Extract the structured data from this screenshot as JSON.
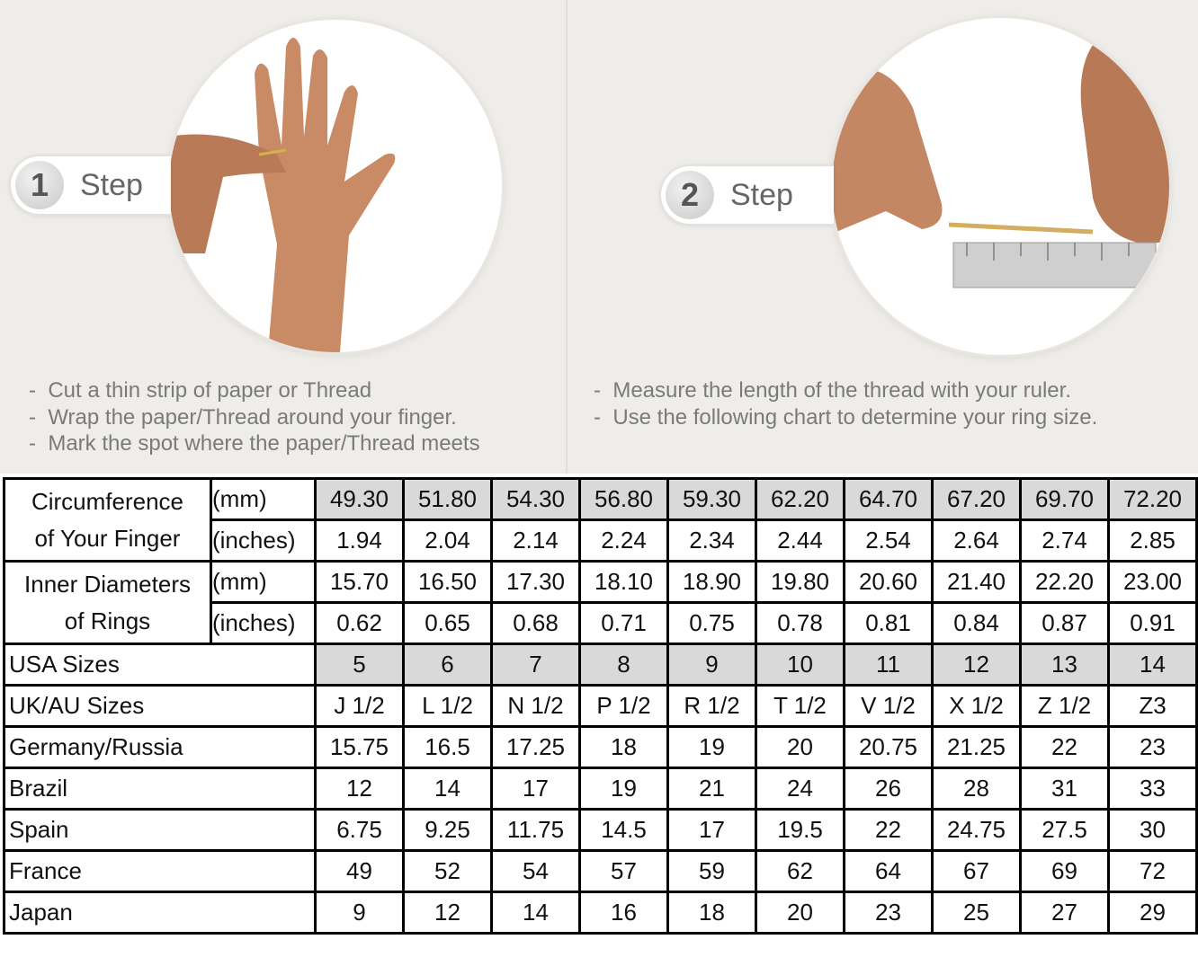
{
  "steps": [
    {
      "number": "1",
      "label": "Step",
      "notes": [
        "Cut a thin strip of paper or Thread",
        "Wrap the paper/Thread around your finger.",
        "Mark the spot where the paper/Thread meets"
      ]
    },
    {
      "number": "2",
      "label": "Step",
      "notes": [
        "Measure the length of the thread with your ruler.",
        "Use the following chart to determine your ring size."
      ]
    }
  ],
  "table": {
    "circumference": {
      "label_line1": "Circumference",
      "label_line2": "of Your Finger",
      "mm_unit": "(mm)",
      "in_unit": "(inches)",
      "mm": [
        "49.30",
        "51.80",
        "54.30",
        "56.80",
        "59.30",
        "62.20",
        "64.70",
        "67.20",
        "69.70",
        "72.20"
      ],
      "inches": [
        "1.94",
        "2.04",
        "2.14",
        "2.24",
        "2.34",
        "2.44",
        "2.54",
        "2.64",
        "2.74",
        "2.85"
      ]
    },
    "diameter": {
      "label_line1": "Inner Diameters",
      "label_line2": "of Rings",
      "mm_unit": "(mm)",
      "in_unit": "(inches)",
      "mm": [
        "15.70",
        "16.50",
        "17.30",
        "18.10",
        "18.90",
        "19.80",
        "20.60",
        "21.40",
        "22.20",
        "23.00"
      ],
      "inches": [
        "0.62",
        "0.65",
        "0.68",
        "0.71",
        "0.75",
        "0.78",
        "0.81",
        "0.84",
        "0.87",
        "0.91"
      ]
    },
    "rows": [
      {
        "label": "USA Sizes",
        "values": [
          "5",
          "6",
          "7",
          "8",
          "9",
          "10",
          "11",
          "12",
          "13",
          "14"
        ],
        "highlight": true
      },
      {
        "label": "UK/AU Sizes",
        "values": [
          "J 1/2",
          "L 1/2",
          "N 1/2",
          "P 1/2",
          "R 1/2",
          "T 1/2",
          "V 1/2",
          "X 1/2",
          "Z 1/2",
          "Z3"
        ]
      },
      {
        "label": "Germany/Russia",
        "values": [
          "15.75",
          "16.5",
          "17.25",
          "18",
          "19",
          "20",
          "20.75",
          "21.25",
          "22",
          "23"
        ]
      },
      {
        "label": "Brazil",
        "values": [
          "12",
          "14",
          "17",
          "19",
          "21",
          "24",
          "26",
          "28",
          "31",
          "33"
        ]
      },
      {
        "label": "Spain",
        "values": [
          "6.75",
          "9.25",
          "11.75",
          "14.5",
          "17",
          "19.5",
          "22",
          "24.75",
          "27.5",
          "30"
        ]
      },
      {
        "label": "France",
        "values": [
          "49",
          "52",
          "54",
          "57",
          "59",
          "62",
          "64",
          "67",
          "69",
          "72"
        ]
      },
      {
        "label": "Japan",
        "values": [
          "9",
          "12",
          "14",
          "16",
          "18",
          "20",
          "23",
          "25",
          "27",
          "29"
        ]
      }
    ],
    "highlight_color": "#d9d9d9"
  }
}
